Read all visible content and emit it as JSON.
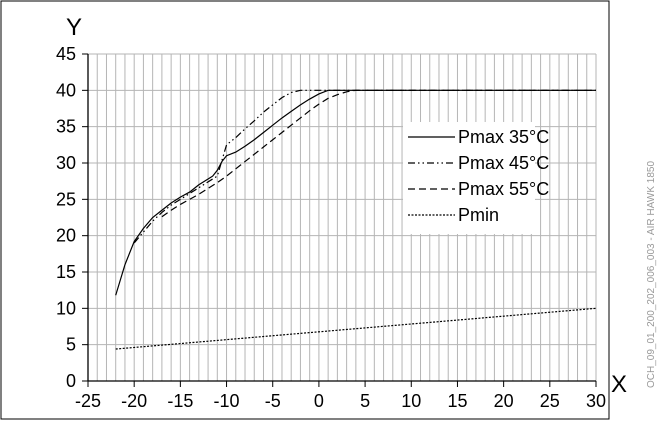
{
  "chart_data": {
    "type": "line",
    "title": "",
    "xlabel": "X",
    "ylabel": "Y",
    "xlim": [
      -25,
      30
    ],
    "ylim": [
      0,
      45
    ],
    "x_ticks": [
      -25,
      -20,
      -15,
      -10,
      -5,
      0,
      5,
      10,
      15,
      20,
      25,
      30
    ],
    "y_ticks": [
      0,
      5,
      10,
      15,
      20,
      25,
      30,
      35,
      40,
      45
    ],
    "x_minor_step": 1,
    "grid": true,
    "legend_position": "right",
    "series": [
      {
        "name": "Pmax 35°C",
        "dash": "solid",
        "points": [
          [
            -22,
            11.8
          ],
          [
            -21,
            16
          ],
          [
            -20,
            19.2
          ],
          [
            -19,
            21
          ],
          [
            -18,
            22.5
          ],
          [
            -17,
            23.5
          ],
          [
            -16,
            24.5
          ],
          [
            -15,
            25.3
          ],
          [
            -14,
            26
          ],
          [
            -13,
            27
          ],
          [
            -12,
            27.8
          ],
          [
            -11.5,
            28.2
          ],
          [
            -11,
            29
          ],
          [
            -10.5,
            30.2
          ],
          [
            -10,
            31
          ],
          [
            -9,
            31.5
          ],
          [
            -8,
            32.3
          ],
          [
            -7,
            33.2
          ],
          [
            -6,
            34.2
          ],
          [
            -5,
            35.2
          ],
          [
            -4,
            36.2
          ],
          [
            -3,
            37.1
          ],
          [
            -2,
            38
          ],
          [
            -1,
            38.8
          ],
          [
            0,
            39.5
          ],
          [
            1,
            40
          ],
          [
            30,
            40
          ]
        ]
      },
      {
        "name": "Pmax 45°C",
        "dash": "dashdotdot",
        "points": [
          [
            -20,
            19
          ],
          [
            -19,
            20.5
          ],
          [
            -18,
            22
          ],
          [
            -17,
            23.2
          ],
          [
            -16,
            24.2
          ],
          [
            -15,
            25
          ],
          [
            -14,
            25.8
          ],
          [
            -13,
            26.6
          ],
          [
            -12,
            27.4
          ],
          [
            -11,
            28.2
          ],
          [
            -10,
            32.5
          ],
          [
            -9,
            33.5
          ],
          [
            -8,
            34.7
          ],
          [
            -7,
            35.8
          ],
          [
            -6,
            37
          ],
          [
            -5,
            38
          ],
          [
            -4,
            39
          ],
          [
            -3,
            39.7
          ],
          [
            -2,
            40
          ],
          [
            30,
            40
          ]
        ]
      },
      {
        "name": "Pmax 55°C",
        "dash": "dashed",
        "points": [
          [
            -17,
            22.6
          ],
          [
            -16,
            23.5
          ],
          [
            -15,
            24.3
          ],
          [
            -14,
            25
          ],
          [
            -13,
            25.7
          ],
          [
            -12,
            26.5
          ],
          [
            -11,
            27.3
          ],
          [
            -10,
            28.2
          ],
          [
            -9,
            29.2
          ],
          [
            -8,
            30.2
          ],
          [
            -7,
            31.2
          ],
          [
            -6,
            32.2
          ],
          [
            -5,
            33.2
          ],
          [
            -4,
            34.2
          ],
          [
            -3,
            35.2
          ],
          [
            -2,
            36.2
          ],
          [
            -1,
            37.2
          ],
          [
            0,
            38.1
          ],
          [
            1,
            38.9
          ],
          [
            2,
            39.4
          ],
          [
            3,
            39.8
          ],
          [
            4,
            40
          ],
          [
            30,
            40
          ]
        ]
      },
      {
        "name": "Pmin",
        "dash": "dotted",
        "points": [
          [
            -22,
            4.4
          ],
          [
            30,
            10
          ]
        ]
      }
    ]
  },
  "watermark": "OCH_09_01_200_202_006_003 - AIR HAWK 1850"
}
